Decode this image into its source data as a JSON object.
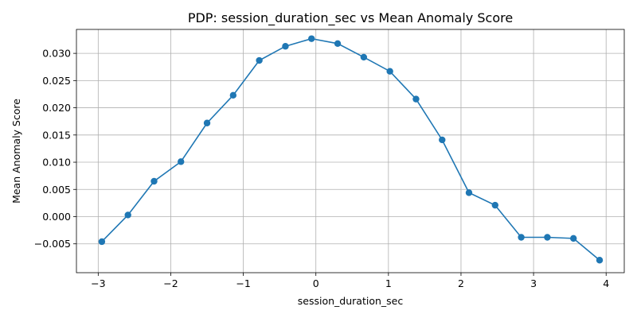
{
  "chart_data": {
    "type": "line",
    "title": "PDP: session_duration_sec vs Mean Anomaly Score",
    "xlabel": "session_duration_sec",
    "ylabel": "Mean Anomaly Score",
    "xlim": [
      -3.3,
      4.25
    ],
    "ylim": [
      -0.0103,
      0.0344
    ],
    "xticks": [
      -3,
      -2,
      -1,
      0,
      1,
      2,
      3,
      4
    ],
    "xtick_labels": [
      "−3",
      "−2",
      "−1",
      "0",
      "1",
      "2",
      "3",
      "4"
    ],
    "yticks": [
      -0.005,
      0.0,
      0.005,
      0.01,
      0.015,
      0.02,
      0.025,
      0.03
    ],
    "ytick_labels": [
      "−0.005",
      "0.000",
      "0.005",
      "0.010",
      "0.015",
      "0.020",
      "0.025",
      "0.030"
    ],
    "grid": true,
    "line_color": "#1f77b4",
    "series": [
      {
        "x": [
          -2.95,
          -2.59,
          -2.23,
          -1.86,
          -1.5,
          -1.14,
          -0.78,
          -0.42,
          -0.06,
          0.3,
          0.66,
          1.02,
          1.38,
          1.74,
          2.11,
          2.47,
          2.83,
          3.19,
          3.55,
          3.91
        ],
        "y": [
          -0.0046,
          0.0003,
          0.0065,
          0.0101,
          0.0172,
          0.0223,
          0.0287,
          0.0313,
          0.0327,
          0.0318,
          0.0293,
          0.0267,
          0.0216,
          0.0141,
          0.0044,
          0.0021,
          -0.0038,
          -0.0038,
          -0.004,
          -0.008
        ]
      }
    ]
  }
}
